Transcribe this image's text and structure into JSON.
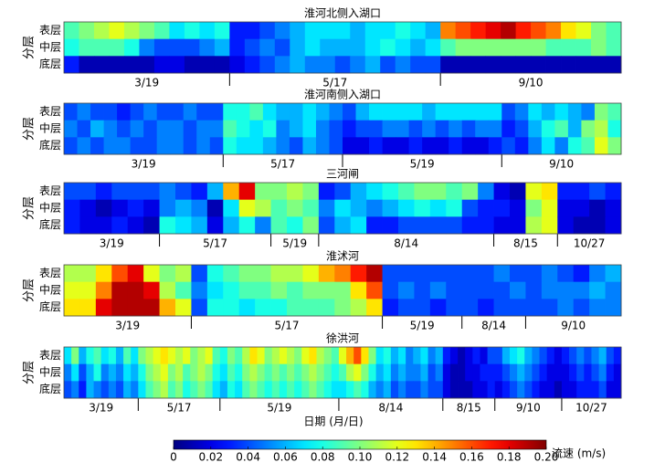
{
  "chart_data": [
    {
      "type": "heatmap",
      "title": "淮河北侧入湖口",
      "y_label": "分层",
      "rows": [
        "表层",
        "中层",
        "底层"
      ],
      "segments": [
        {
          "label": "3/19",
          "values": [
            [
              0.09,
              0.1,
              0.11,
              0.12,
              0.11,
              0.1,
              0.09,
              0.07,
              0.08,
              0.07,
              0.08
            ],
            [
              0.08,
              0.09,
              0.09,
              0.09,
              0.08,
              0.05,
              0.04,
              0.04,
              0.04,
              0.05,
              0.06
            ],
            [
              0.03,
              0.01,
              0.01,
              0.01,
              0.01,
              0.01,
              0.02,
              0.02,
              0.01,
              0.01,
              0.01
            ]
          ]
        },
        {
          "label": "5/17",
          "values": [
            [
              0.03,
              0.03,
              0.04,
              0.05,
              0.06,
              0.07,
              0.07,
              0.07,
              0.06,
              0.07,
              0.07,
              0.08,
              0.07,
              0.06
            ],
            [
              0.03,
              0.04,
              0.05,
              0.04,
              0.06,
              0.07,
              0.06,
              0.06,
              0.06,
              0.07,
              0.08,
              0.07,
              0.06,
              0.07
            ],
            [
              0.02,
              0.03,
              0.04,
              0.05,
              0.06,
              0.05,
              0.05,
              0.04,
              0.05,
              0.06,
              0.04,
              0.05,
              0.04,
              0.04
            ]
          ]
        },
        {
          "label": "9/10",
          "values": [
            [
              0.15,
              0.16,
              0.17,
              0.18,
              0.19,
              0.17,
              0.16,
              0.15,
              0.13,
              0.12,
              0.1,
              0.09
            ],
            [
              0.09,
              0.1,
              0.1,
              0.1,
              0.1,
              0.1,
              0.1,
              0.09,
              0.09,
              0.09,
              0.1,
              0.09
            ],
            [
              0.01,
              0.01,
              0.01,
              0.01,
              0.01,
              0.01,
              0.01,
              0.01,
              0.01,
              0.01,
              0.01,
              0.01
            ]
          ]
        }
      ]
    },
    {
      "type": "heatmap",
      "title": "淮河南侧入湖口",
      "y_label": "分层",
      "rows": [
        "表层",
        "中层",
        "底层"
      ],
      "segments": [
        {
          "label": "3/19",
          "values": [
            [
              0.04,
              0.05,
              0.04,
              0.04,
              0.03,
              0.04,
              0.05,
              0.04,
              0.04,
              0.05,
              0.04,
              0.04
            ],
            [
              0.05,
              0.04,
              0.06,
              0.05,
              0.04,
              0.05,
              0.04,
              0.05,
              0.05,
              0.04,
              0.05,
              0.05
            ],
            [
              0.04,
              0.05,
              0.04,
              0.05,
              0.05,
              0.04,
              0.04,
              0.05,
              0.05,
              0.04,
              0.05,
              0.04
            ]
          ]
        },
        {
          "label": "5/17",
          "values": [
            [
              0.08,
              0.08,
              0.09,
              0.07,
              0.06,
              0.06,
              0.07,
              0.06,
              0.05
            ],
            [
              0.09,
              0.08,
              0.07,
              0.08,
              0.05,
              0.06,
              0.07,
              0.05,
              0.04
            ],
            [
              0.08,
              0.07,
              0.07,
              0.06,
              0.05,
              0.04,
              0.06,
              0.05,
              0.04
            ]
          ]
        },
        {
          "label": "5/19",
          "values": [
            [
              0.04,
              0.06,
              0.07,
              0.07,
              0.07,
              0.07,
              0.06,
              0.07,
              0.07,
              0.07,
              0.07,
              0.07
            ],
            [
              0.03,
              0.04,
              0.04,
              0.05,
              0.05,
              0.04,
              0.05,
              0.04,
              0.05,
              0.04,
              0.05,
              0.05
            ],
            [
              0.02,
              0.02,
              0.03,
              0.02,
              0.02,
              0.03,
              0.02,
              0.02,
              0.03,
              0.02,
              0.02,
              0.03
            ]
          ]
        },
        {
          "label": "9/10",
          "values": [
            [
              0.04,
              0.05,
              0.07,
              0.06,
              0.07,
              0.06,
              0.05,
              0.1,
              0.09
            ],
            [
              0.03,
              0.04,
              0.06,
              0.08,
              0.09,
              0.06,
              0.1,
              0.11,
              0.08
            ],
            [
              0.04,
              0.03,
              0.05,
              0.07,
              0.05,
              0.08,
              0.09,
              0.12,
              0.1
            ]
          ]
        }
      ]
    },
    {
      "type": "heatmap",
      "title": "三河闸",
      "y_label": "分层",
      "rows": [
        "表层",
        "中层",
        "底层"
      ],
      "segments": [
        {
          "label": "3/19",
          "values": [
            [
              0.04,
              0.04,
              0.03,
              0.04,
              0.04,
              0.04
            ],
            [
              0.03,
              0.02,
              0.01,
              0.02,
              0.03,
              0.02
            ],
            [
              0.03,
              0.02,
              0.02,
              0.03,
              0.02,
              0.01
            ]
          ]
        },
        {
          "label": "5/17",
          "values": [
            [
              0.05,
              0.04,
              0.03,
              0.06,
              0.14,
              0.18,
              0.1
            ],
            [
              0.05,
              0.06,
              0.05,
              0.01,
              0.07,
              0.12,
              0.11
            ],
            [
              0.08,
              0.07,
              0.06,
              0.02,
              0.06,
              0.08,
              0.05
            ]
          ]
        },
        {
          "label": "5/19",
          "values": [
            [
              0.1,
              0.11,
              0.1
            ],
            [
              0.09,
              0.1,
              0.09
            ],
            [
              0.09,
              0.08,
              0.1
            ]
          ]
        },
        {
          "label": "8/14",
          "values": [
            [
              0.03,
              0.04,
              0.06,
              0.07,
              0.08,
              0.09,
              0.1,
              0.1,
              0.09,
              0.1,
              0.05
            ],
            [
              0.05,
              0.07,
              0.06,
              0.05,
              0.06,
              0.07,
              0.08,
              0.07,
              0.08,
              0.04,
              0.03
            ],
            [
              0.04,
              0.06,
              0.07,
              0.03,
              0.03,
              0.04,
              0.04,
              0.04,
              0.04,
              0.03,
              0.03
            ]
          ]
        },
        {
          "label": "8/15",
          "values": [
            [
              0.02,
              0.01,
              0.12,
              0.13
            ],
            [
              0.03,
              0.02,
              0.1,
              0.12
            ],
            [
              0.02,
              0.02,
              0.11,
              0.12
            ]
          ]
        },
        {
          "label": "10/27",
          "values": [
            [
              0.03,
              0.03,
              0.04,
              0.03
            ],
            [
              0.02,
              0.02,
              0.01,
              0.02
            ],
            [
              0.02,
              0.01,
              0.01,
              0.02
            ]
          ]
        }
      ]
    },
    {
      "type": "heatmap",
      "title": "淮沭河",
      "y_label": "分层",
      "rows": [
        "表层",
        "中层",
        "底层"
      ],
      "segments": [
        {
          "label": "3/19",
          "values": [
            [
              0.11,
              0.11,
              0.13,
              0.16,
              0.18,
              0.12,
              0.1,
              0.11
            ],
            [
              0.12,
              0.12,
              0.15,
              0.19,
              0.19,
              0.18,
              0.11,
              0.09
            ],
            [
              0.13,
              0.13,
              0.18,
              0.19,
              0.19,
              0.19,
              0.14,
              0.12
            ]
          ]
        },
        {
          "label": "5/17",
          "values": [
            [
              0.04,
              0.08,
              0.09,
              0.1,
              0.1,
              0.11,
              0.11,
              0.12,
              0.14,
              0.15,
              0.17,
              0.19
            ],
            [
              0.05,
              0.07,
              0.08,
              0.09,
              0.09,
              0.1,
              0.09,
              0.1,
              0.1,
              0.1,
              0.13,
              0.16
            ],
            [
              0.04,
              0.08,
              0.08,
              0.07,
              0.08,
              0.08,
              0.09,
              0.09,
              0.09,
              0.1,
              0.11,
              0.13
            ]
          ]
        },
        {
          "label": "5/19",
          "values": [
            [
              0.04,
              0.04,
              0.04,
              0.04,
              0.04
            ],
            [
              0.04,
              0.05,
              0.04,
              0.05,
              0.04
            ],
            [
              0.03,
              0.04,
              0.04,
              0.03,
              0.04
            ]
          ]
        },
        {
          "label": "8/14",
          "values": [
            [
              0.04,
              0.04,
              0.05,
              0.04
            ],
            [
              0.04,
              0.04,
              0.04,
              0.05
            ],
            [
              0.04,
              0.03,
              0.04,
              0.04
            ]
          ]
        },
        {
          "label": "9/10",
          "values": [
            [
              0.04,
              0.05,
              0.04,
              0.03,
              0.05,
              0.06
            ],
            [
              0.04,
              0.05,
              0.05,
              0.05,
              0.06,
              0.05
            ],
            [
              0.04,
              0.04,
              0.05,
              0.04,
              0.05,
              0.05
            ]
          ]
        }
      ]
    },
    {
      "type": "heatmap",
      "title": "徐洪河",
      "y_label": "分层",
      "rows": [
        "表层",
        "中层",
        "底层"
      ],
      "segments": [
        {
          "label": "3/19",
          "values": [
            [
              0.07,
              0.1,
              0.06,
              0.08,
              0.09,
              0.07,
              0.08,
              0.06,
              0.09,
              0.07
            ],
            [
              0.05,
              0.07,
              0.04,
              0.06,
              0.08,
              0.05,
              0.06,
              0.05,
              0.07,
              0.06
            ],
            [
              0.04,
              0.05,
              0.03,
              0.06,
              0.05,
              0.04,
              0.05,
              0.04,
              0.06,
              0.05
            ]
          ]
        },
        {
          "label": "5/17",
          "values": [
            [
              0.1,
              0.11,
              0.12,
              0.13,
              0.12,
              0.11,
              0.12,
              0.1,
              0.11,
              0.12,
              0.09
            ],
            [
              0.08,
              0.1,
              0.11,
              0.12,
              0.1,
              0.11,
              0.09,
              0.1,
              0.11,
              0.1,
              0.08
            ],
            [
              0.07,
              0.09,
              0.1,
              0.11,
              0.09,
              0.1,
              0.08,
              0.09,
              0.1,
              0.09,
              0.07
            ]
          ]
        },
        {
          "label": "5/19",
          "values": [
            [
              0.08,
              0.1,
              0.09,
              0.11,
              0.13,
              0.12,
              0.1,
              0.11,
              0.12,
              0.11,
              0.1,
              0.12,
              0.13,
              0.11,
              0.1,
              0.09
            ],
            [
              0.07,
              0.09,
              0.08,
              0.1,
              0.11,
              0.1,
              0.09,
              0.1,
              0.09,
              0.1,
              0.09,
              0.1,
              0.11,
              0.1,
              0.09,
              0.08
            ],
            [
              0.06,
              0.08,
              0.07,
              0.09,
              0.1,
              0.09,
              0.08,
              0.09,
              0.08,
              0.09,
              0.08,
              0.09,
              0.1,
              0.09,
              0.08,
              0.07
            ]
          ]
        },
        {
          "label": "8/14",
          "values": [
            [
              0.12,
              0.14,
              0.16,
              0.13,
              0.1,
              0.07,
              0.08,
              0.06,
              0.07,
              0.05,
              0.06,
              0.07,
              0.05,
              0.06
            ],
            [
              0.09,
              0.11,
              0.12,
              0.1,
              0.08,
              0.06,
              0.07,
              0.05,
              0.06,
              0.05,
              0.05,
              0.06,
              0.04,
              0.05
            ],
            [
              0.07,
              0.08,
              0.09,
              0.08,
              0.06,
              0.05,
              0.06,
              0.04,
              0.05,
              0.04,
              0.04,
              0.05,
              0.04,
              0.04
            ]
          ]
        },
        {
          "label": "8/15",
          "values": [
            [
              0.03,
              0.02,
              0.01,
              0.02,
              0.03,
              0.02,
              0.04
            ],
            [
              0.02,
              0.01,
              0.01,
              0.02,
              0.02,
              0.03,
              0.03
            ],
            [
              0.02,
              0.01,
              0.01,
              0.01,
              0.02,
              0.02,
              0.03
            ]
          ]
        },
        {
          "label": "9/10",
          "values": [
            [
              0.04,
              0.06,
              0.07,
              0.08,
              0.06,
              0.05,
              0.04,
              0.03,
              0.02
            ],
            [
              0.03,
              0.04,
              0.05,
              0.06,
              0.05,
              0.04,
              0.03,
              0.02,
              0.02
            ],
            [
              0.02,
              0.03,
              0.04,
              0.05,
              0.04,
              0.03,
              0.02,
              0.02,
              0.01
            ]
          ]
        },
        {
          "label": "10/27",
          "values": [
            [
              0.03,
              0.04,
              0.05,
              0.04,
              0.05,
              0.06,
              0.04,
              0.03
            ],
            [
              0.02,
              0.03,
              0.04,
              0.03,
              0.04,
              0.05,
              0.03,
              0.02
            ],
            [
              0.02,
              0.02,
              0.03,
              0.03,
              0.03,
              0.04,
              0.02,
              0.02
            ]
          ]
        }
      ]
    }
  ],
  "x_label": "日期 (月/日)",
  "colorbar": {
    "label": "流速 (m/s)",
    "colormap": "jet",
    "clim": [
      0,
      0.2
    ],
    "ticks": [
      0,
      0.02,
      0.04,
      0.06,
      0.08,
      {
        "value": 0.1,
        "label": "0.10"
      },
      0.12,
      0.14,
      0.16,
      0.18,
      {
        "value": 0.2,
        "label": "0.20"
      }
    ]
  }
}
